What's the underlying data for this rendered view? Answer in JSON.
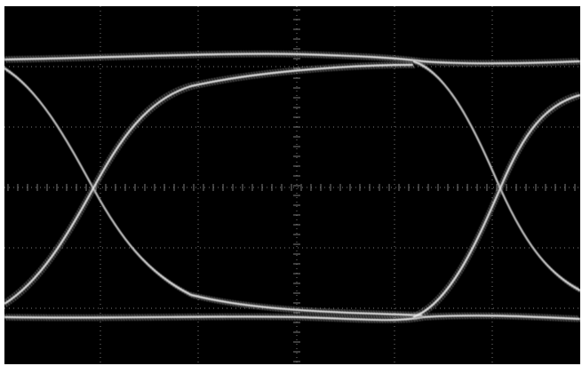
{
  "display": {
    "background_color": "#000000",
    "frame_color": "#ffffff",
    "trace_color": "#e8e8e8",
    "trace_glow_color": "#9a9a9a",
    "graticule_color": "#7a7a7a",
    "graticule": {
      "horizontal_divisions": 6,
      "vertical_divisions": 6,
      "style": "dotted",
      "center_axes_with_minor_ticks": true
    },
    "labels_shown": false
  },
  "eye_diagram": {
    "unit_intervals_shown": 1,
    "crossing_points": 2,
    "trace_bundles": [
      "top-rail",
      "bottom-rail",
      "left-falling-edge",
      "left-rising-edge",
      "right-falling-edge",
      "right-rising-edge"
    ],
    "eye_opening": "wide-open"
  }
}
